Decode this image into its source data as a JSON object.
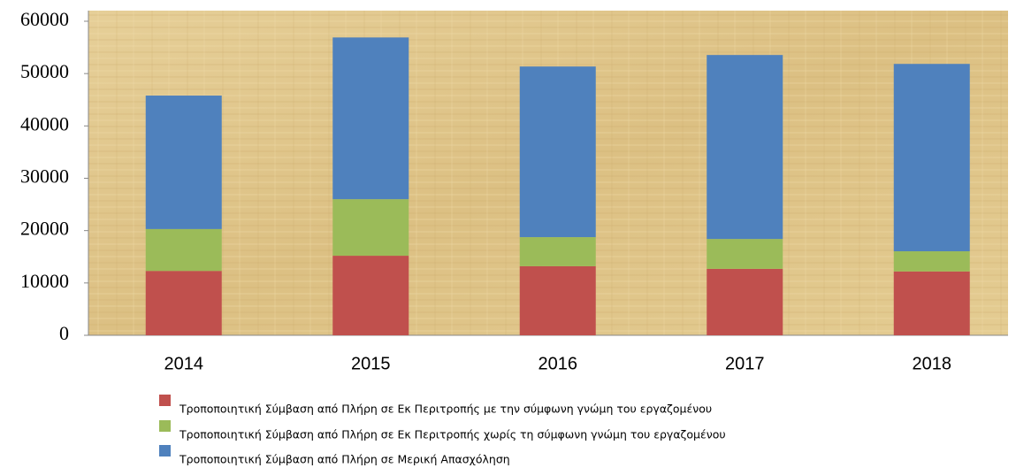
{
  "chart_data": {
    "type": "stacked_bar",
    "categories": [
      "2014",
      "2015",
      "2016",
      "2017",
      "2018"
    ],
    "series": [
      {
        "name": "Τροποποιητική Σύμβαση από Πλήρη σε Εκ Περιτροπής με την σύμφωνη γνώμη του εργαζομένου",
        "color": "#c0504d",
        "values": [
          12300,
          15200,
          13200,
          12700,
          12200
        ]
      },
      {
        "name": "Τροποποιητική Σύμβαση από Πλήρη σε Εκ Περιτροπής χωρίς τη σύμφωνη γνώμη του εργαζομένου",
        "color": "#9bbb59",
        "values": [
          8000,
          10800,
          5550,
          5700,
          3850
        ]
      },
      {
        "name": "Τροποποιητική Σύμβαση από Πλήρη σε Μερική Απασχόληση",
        "color": "#4f81bd",
        "values": [
          25500,
          30900,
          32600,
          35150,
          35800
        ]
      }
    ],
    "ylim": [
      0,
      60000
    ],
    "yticks": [
      0,
      10000,
      20000,
      30000,
      40000,
      50000,
      60000
    ],
    "grid": false
  }
}
